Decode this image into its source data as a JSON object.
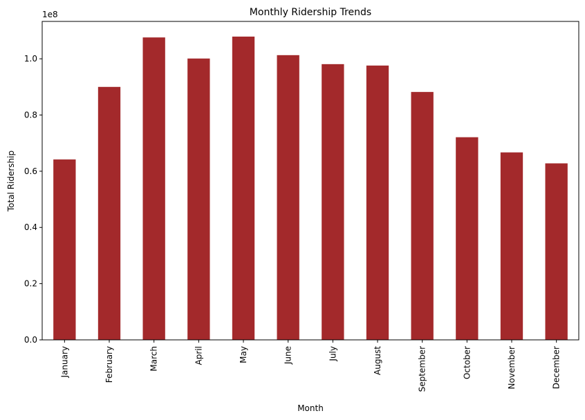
{
  "chart_data": {
    "type": "bar",
    "title": "Monthly Ridership Trends",
    "xlabel": "Month",
    "ylabel": "Total Ridership",
    "y_offset_label": "1e8",
    "categories": [
      "January",
      "February",
      "March",
      "April",
      "May",
      "June",
      "July",
      "August",
      "September",
      "October",
      "November",
      "December"
    ],
    "values": [
      64200000,
      90000000,
      107600000,
      100100000,
      107900000,
      101300000,
      98100000,
      97600000,
      88200000,
      72100000,
      66700000,
      62800000
    ],
    "ylim": [
      0,
      113300000
    ],
    "y_ticks": [
      0,
      20000000,
      40000000,
      60000000,
      80000000,
      100000000
    ],
    "y_tick_labels": [
      "0.0",
      "0.2",
      "0.4",
      "0.6",
      "0.8",
      "1.0"
    ],
    "bar_color": "#a3292b",
    "grid": false,
    "legend": "none"
  }
}
